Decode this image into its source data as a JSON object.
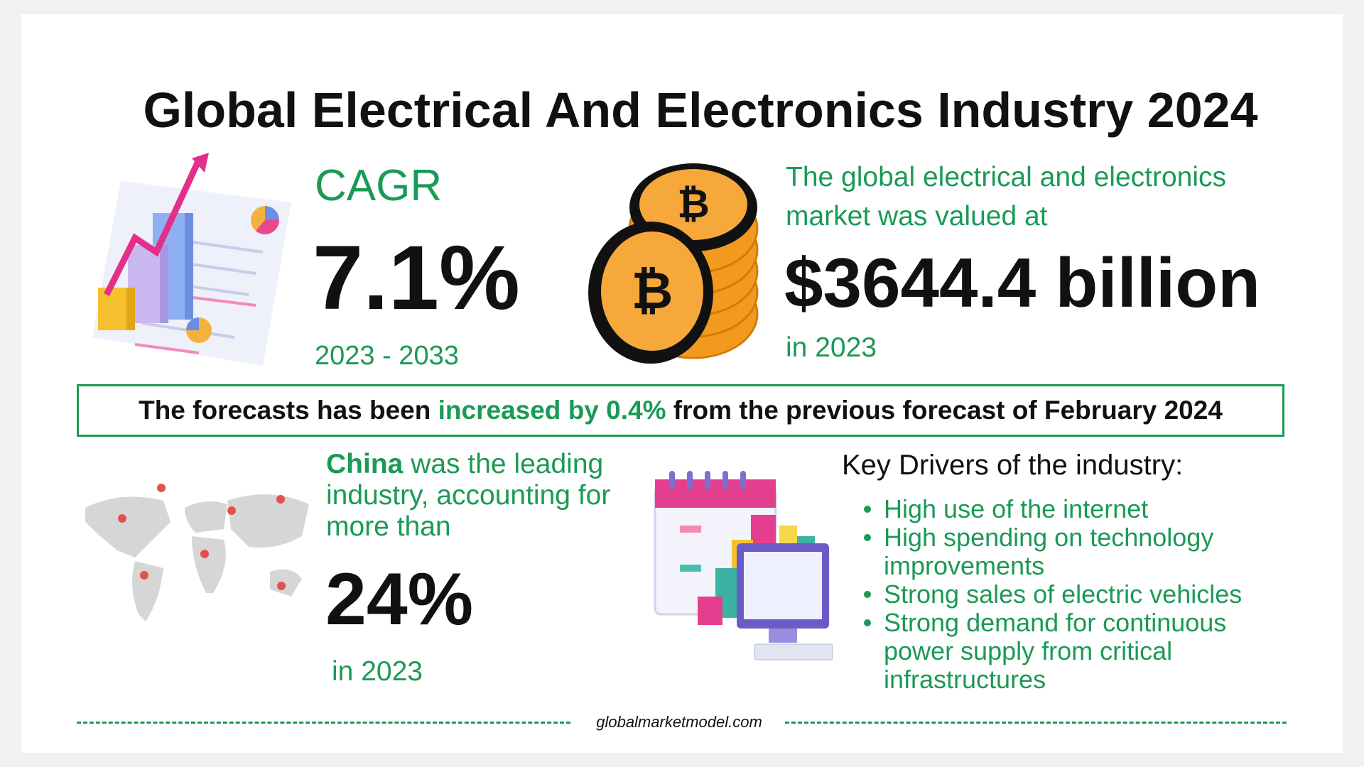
{
  "title": "Global Electrical And Electronics Industry 2024",
  "cagr": {
    "label": "CAGR",
    "value": "7.1%",
    "period": "2023 - 2033"
  },
  "market": {
    "intro": "The global electrical and electronics market was valued at",
    "value": "$3644.4 billion",
    "year": "in 2023"
  },
  "forecast": {
    "before": "The forecasts has been",
    "highlight": "increased by 0.4%",
    "after": "from the previous forecast of February 2024"
  },
  "china": {
    "name": "China",
    "text": "was the leading industry, accounting for more than",
    "value": "24%",
    "year": "in 2023"
  },
  "drivers": {
    "heading": "Key Drivers of the industry:",
    "items": [
      "High use of the internet",
      "High spending on technology improvements",
      "Strong sales of electric vehicles",
      "Strong demand for continuous power supply from critical infrastructures"
    ]
  },
  "footer": "globalmarketmodel.com"
}
